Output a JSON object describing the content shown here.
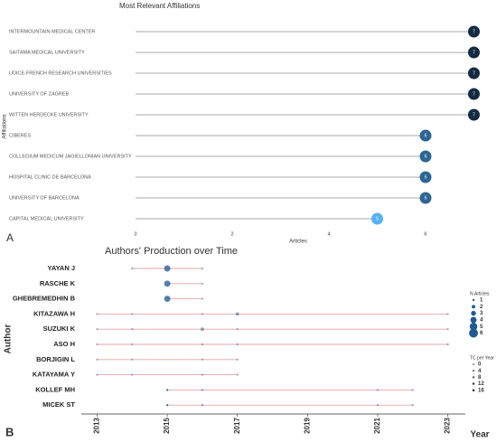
{
  "chart_data": [
    {
      "type": "lollipop",
      "panel": "A",
      "title": "Most Relevant Affiliations",
      "x_label": "Articles",
      "y_label": "Affiliations",
      "categories": [
        "INTERMOUNTAIN MEDICAL CENTER",
        "SAITAMA MEDICAL UNIVERSITY",
        "UDICE-FRENCH RESEARCH UNIVERSITIES",
        "UNIVERSITY OF ZAGREB",
        "WITTEN HERDECKE UNIVERSITY",
        "CIBERES",
        "COLLEGIUM MEDICUM JAGIELLONIAN UNIVERSITY",
        "HOSPITAL CLINIC DE BARCELONA",
        "UNIVERSITY OF BARCELONA",
        "CAPITAL MEDICAL UNIVERSITY"
      ],
      "values": [
        7,
        7,
        7,
        7,
        7,
        6,
        6,
        6,
        6,
        5
      ],
      "colors": {
        "7": "#132b43",
        "6": "#2d6594",
        "5": "#56b1f7"
      },
      "xlim": [
        0,
        7.3
      ],
      "xticks": [
        0,
        2,
        4,
        6
      ]
    },
    {
      "type": "timeline",
      "panel": "B",
      "title": "Authors' Production over Time",
      "x_label": "Year",
      "y_label": "Author",
      "rows": [
        {
          "author": "YAYAN J",
          "years": [
            2014,
            2015,
            2016
          ],
          "articles": [
            1,
            4,
            1
          ],
          "tc_per_year": [
            2,
            10,
            1
          ]
        },
        {
          "author": "RASCHE K",
          "years": [
            2015,
            2016
          ],
          "articles": [
            4,
            1
          ],
          "tc_per_year": [
            10,
            1
          ]
        },
        {
          "author": "GHEBREMEDHIN B",
          "years": [
            2015,
            2016
          ],
          "articles": [
            4,
            1
          ],
          "tc_per_year": [
            10,
            1
          ]
        },
        {
          "author": "KITAZAWA H",
          "years": [
            2013,
            2014,
            2016,
            2017,
            2023
          ],
          "articles": [
            1,
            1,
            1,
            2,
            1
          ],
          "tc_per_year": [
            1,
            1,
            1,
            4,
            1
          ]
        },
        {
          "author": "SUZUKI K",
          "years": [
            2013,
            2014,
            2016,
            2017,
            2023
          ],
          "articles": [
            1,
            1,
            2,
            1,
            1
          ],
          "tc_per_year": [
            1,
            1,
            4,
            1,
            1
          ]
        },
        {
          "author": "ASO H",
          "years": [
            2013,
            2014,
            2016,
            2017,
            2023
          ],
          "articles": [
            1,
            1,
            1,
            1,
            1
          ],
          "tc_per_year": [
            1,
            1,
            1,
            1,
            1
          ]
        },
        {
          "author": "BORJIGIN L",
          "years": [
            2013,
            2014,
            2016,
            2017
          ],
          "articles": [
            1,
            1,
            1,
            1
          ],
          "tc_per_year": [
            1,
            1,
            1,
            1
          ]
        },
        {
          "author": "KATAYAMA Y",
          "years": [
            2013,
            2014,
            2016,
            2017
          ],
          "articles": [
            1,
            1,
            1,
            1
          ],
          "tc_per_year": [
            1,
            1,
            1,
            1
          ]
        },
        {
          "author": "KOLLEF MH",
          "years": [
            2015,
            2016,
            2021,
            2022
          ],
          "articles": [
            1,
            1,
            1,
            1
          ],
          "tc_per_year": [
            12,
            4,
            2,
            2
          ]
        },
        {
          "author": "MICEK ST",
          "years": [
            2015,
            2016,
            2021,
            2022
          ],
          "articles": [
            1,
            1,
            1,
            1
          ],
          "tc_per_year": [
            12,
            4,
            2,
            2
          ]
        }
      ],
      "point_color": "#1f5a93",
      "line_color": "#e8a4a4",
      "xlim": [
        2012.55,
        2023.5
      ],
      "xticks": [
        2013,
        2015,
        2017,
        2019,
        2021,
        2023
      ],
      "size_legend": {
        "title": "N.Articles",
        "values": [
          1,
          2,
          3,
          4,
          5,
          6
        ]
      },
      "alpha_legend": {
        "title": "TC per Year",
        "values": [
          0,
          4,
          8,
          12,
          16
        ]
      }
    }
  ]
}
